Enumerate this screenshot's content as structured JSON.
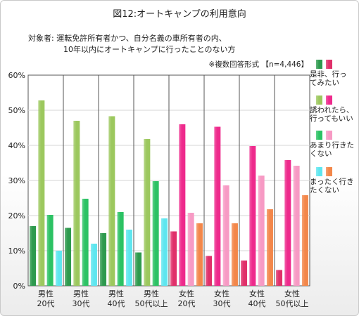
{
  "title": "図12:オートキャンプの利用意向",
  "subject": {
    "label": "対象者:",
    "line1": "運転免許所有者かつ、自分名義の車所有者の内、",
    "line2": "10年以内にオートキャンプに行ったことのない方"
  },
  "note": "※複数回答形式 【n=4,446】",
  "chart_data": {
    "type": "bar",
    "ylim": [
      0,
      60
    ],
    "yticks": [
      "0%",
      "10%",
      "20%",
      "30%",
      "40%",
      "50%",
      "60%"
    ],
    "categories": [
      [
        "男性",
        "20代"
      ],
      [
        "男性",
        "30代"
      ],
      [
        "男性",
        "40代"
      ],
      [
        "男性",
        "50代以上"
      ],
      [
        "女性",
        "20代"
      ],
      [
        "女性",
        "30代"
      ],
      [
        "女性",
        "40代"
      ],
      [
        "女性",
        "50代以上"
      ]
    ],
    "series": [
      {
        "name": "是非、行ってみたい",
        "legend_lines": [
          "是非、行っ",
          "てみたい"
        ],
        "values": [
          17,
          16.5,
          15,
          9.5,
          15.5,
          8.5,
          7.2,
          4.5
        ],
        "male_color": "#2e9a4e",
        "female_color": "#e0306a"
      },
      {
        "name": "誘われたら、行ってもいい",
        "legend_lines": [
          "誘われたら、",
          "行ってもいい"
        ],
        "values": [
          52.8,
          47,
          48.3,
          41.8,
          46,
          45.3,
          39.8,
          35.8
        ],
        "male_color": "#9cc85e",
        "female_color": "#ee2a8c"
      },
      {
        "name": "あまり行きたくない",
        "legend_lines": [
          "あまり行きた",
          "くない"
        ],
        "values": [
          20.2,
          24.8,
          21,
          29.8,
          20.8,
          28.6,
          31.4,
          34.2
        ],
        "male_color": "#2cc264",
        "female_color": "#f79ac4"
      },
      {
        "name": "まったく行きたくない",
        "legend_lines": [
          "まったく行き",
          "たくない"
        ],
        "values": [
          10,
          12,
          16,
          19.2,
          17.8,
          17.8,
          21.8,
          25.8
        ],
        "male_color": "#5ee6ef",
        "female_color": "#f3874a"
      }
    ]
  }
}
